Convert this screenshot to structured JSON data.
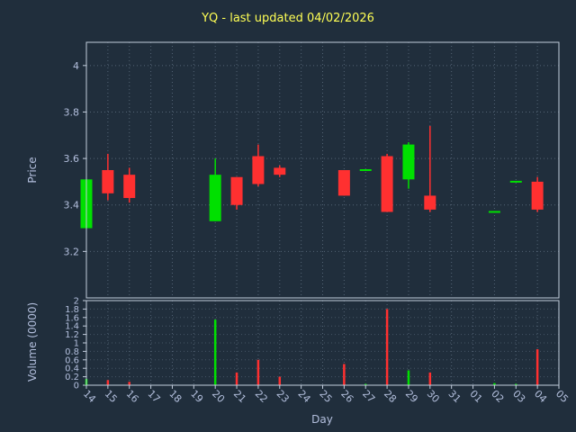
{
  "chart_data": {
    "type": "candlestick",
    "title": "YQ - last updated 04/02/2026",
    "xlabel": "Day",
    "price_ylabel": "Price",
    "volume_ylabel": "Volume (0000)",
    "grid": true,
    "legend": "none",
    "colors": {
      "background": "#202e3c",
      "title": "#ffff55",
      "text": "#b3bfdd",
      "grid": "#7d8fa3",
      "spine": "#c2cddc",
      "up": "#00e000",
      "down": "#ff3030"
    },
    "x_ticklabels": [
      "14",
      "15",
      "16",
      "17",
      "18",
      "19",
      "20",
      "21",
      "22",
      "23",
      "24",
      "25",
      "26",
      "27",
      "28",
      "29",
      "30",
      "31",
      "01",
      "02",
      "03",
      "04",
      "05"
    ],
    "price_tick_labels": [
      "3.2",
      "3.4",
      "3.6",
      "3.8",
      "4"
    ],
    "price_ylim": [
      3.0,
      4.1
    ],
    "volume_tick_labels": [
      "0",
      "0.2",
      "0.4",
      "0.6",
      "0.8",
      "1",
      "1.2",
      "1.4",
      "1.6",
      "1.8",
      "2"
    ],
    "volume_ylim": [
      0,
      2
    ],
    "candles": [
      {
        "day": "14",
        "open": 3.3,
        "high": 3.51,
        "low": 3.3,
        "close": 3.51,
        "volume": 0.15
      },
      {
        "day": "15",
        "open": 3.55,
        "high": 3.62,
        "low": 3.42,
        "close": 3.45,
        "volume": 0.12
      },
      {
        "day": "16",
        "open": 3.53,
        "high": 3.56,
        "low": 3.41,
        "close": 3.43,
        "volume": 0.08
      },
      {
        "day": "20",
        "open": 3.33,
        "high": 3.6,
        "low": 3.33,
        "close": 3.53,
        "volume": 1.55
      },
      {
        "day": "21",
        "open": 3.52,
        "high": 3.52,
        "low": 3.38,
        "close": 3.4,
        "volume": 0.3
      },
      {
        "day": "22",
        "open": 3.61,
        "high": 3.66,
        "low": 3.48,
        "close": 3.49,
        "volume": 0.6
      },
      {
        "day": "23",
        "open": 3.56,
        "high": 3.57,
        "low": 3.52,
        "close": 3.53,
        "volume": 0.2
      },
      {
        "day": "26",
        "open": 3.55,
        "high": 3.55,
        "low": 3.44,
        "close": 3.44,
        "volume": 0.5
      },
      {
        "day": "27",
        "open": 3.55,
        "high": 3.55,
        "low": 3.55,
        "close": 3.55,
        "volume": 0.03
      },
      {
        "day": "28",
        "open": 3.61,
        "high": 3.62,
        "low": 3.37,
        "close": 3.37,
        "volume": 1.8
      },
      {
        "day": "29",
        "open": 3.51,
        "high": 3.67,
        "low": 3.47,
        "close": 3.66,
        "volume": 0.35
      },
      {
        "day": "30",
        "open": 3.44,
        "high": 3.74,
        "low": 3.37,
        "close": 3.38,
        "volume": 0.3
      },
      {
        "day": "02",
        "open": 3.37,
        "high": 3.37,
        "low": 3.37,
        "close": 3.37,
        "volume": 0.05
      },
      {
        "day": "03",
        "open": 3.5,
        "high": 3.5,
        "low": 3.5,
        "close": 3.5,
        "volume": 0.03
      },
      {
        "day": "04",
        "open": 3.5,
        "high": 3.52,
        "low": 3.37,
        "close": 3.38,
        "volume": 0.85
      }
    ]
  }
}
